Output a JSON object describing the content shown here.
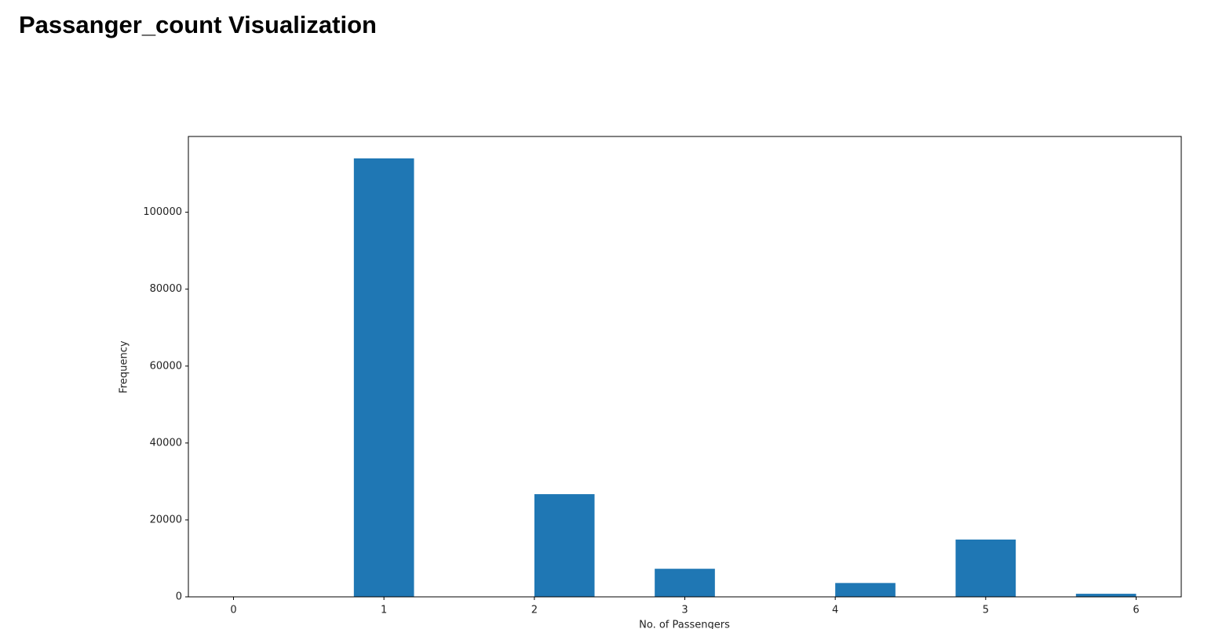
{
  "header": {
    "title": "Passanger_count Visualization"
  },
  "chart_data": {
    "type": "histogram",
    "xlabel": "No. of Passengers",
    "ylabel": "Frequency",
    "bins": [
      0,
      0.4,
      0.8,
      1.2,
      1.6,
      2,
      2.4,
      2.8,
      3.2,
      3.6,
      4,
      4.4,
      4.8,
      5.2,
      5.6,
      6
    ],
    "values": [
      0,
      0,
      114000,
      0,
      0,
      26700,
      0,
      7300,
      0,
      0,
      3600,
      0,
      14900,
      0,
      800
    ],
    "color": "#1f77b4",
    "xlim": [
      -0.3,
      6.3
    ],
    "xticks": [
      0,
      1,
      2,
      3,
      4,
      5,
      6
    ],
    "ylim": [
      0,
      119700
    ],
    "yticks": [
      0,
      20000,
      40000,
      60000,
      80000,
      100000
    ],
    "grid": false
  }
}
